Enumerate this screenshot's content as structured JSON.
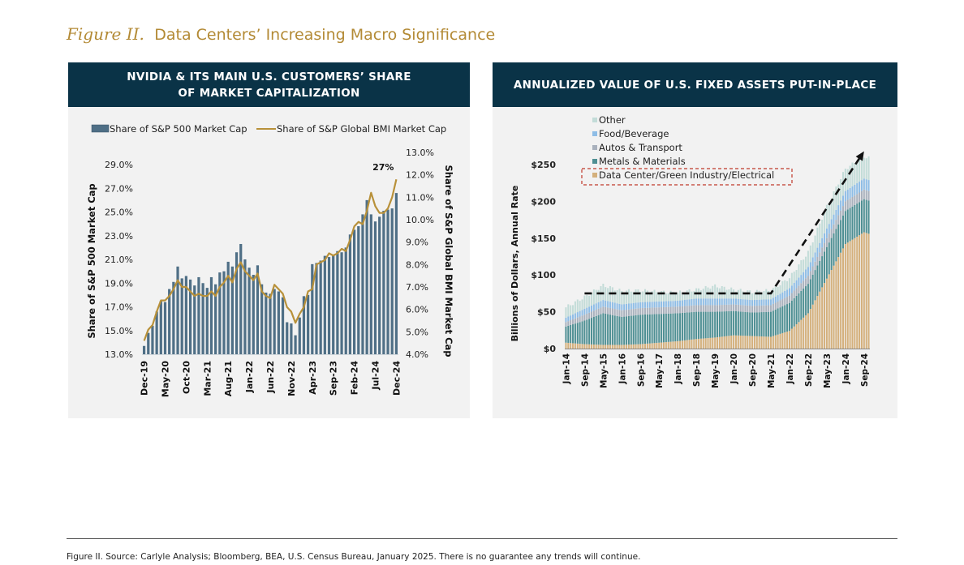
{
  "figure": {
    "number": "Figure II.",
    "title": "Data Centers’ Increasing Macro Significance"
  },
  "footer": {
    "source": "Figure II. Source: Carlyle Analysis; Bloomberg, BEA, U.S. Census Bureau, January 2025. There is no guarantee any trends will continue."
  },
  "colors": {
    "header_bg": "#0a3347",
    "title_gold": "#b38a35",
    "bar_blue": "#4f6f86",
    "line_gold": "#b8913a",
    "data_center": "#d4b07c",
    "metals": "#4e8f93",
    "autos": "#a9b1bd",
    "food": "#8ebde6",
    "other": "#c3dcd8",
    "highlight_box": "#c0392b"
  },
  "chart_data": [
    {
      "type": "bar",
      "title": "NVIDIA & ITS MAIN U.S. CUSTOMERS’ SHARE OF MARKET CAPITALIZATION",
      "ylabel": "Share of S&P 500 Market Cap",
      "y2label": "Share of S&P Global BMI Market Cap",
      "ylim": [
        13.0,
        29.0
      ],
      "y2lim": [
        4.0,
        13.0
      ],
      "yticks": [
        "13.0%",
        "15.0%",
        "17.0%",
        "19.0%",
        "21.0%",
        "23.0%",
        "25.0%",
        "27.0%",
        "29.0%"
      ],
      "y2ticks": [
        "4.0%",
        "5.0%",
        "6.0%",
        "7.0%",
        "8.0%",
        "9.0%",
        "10.0%",
        "11.0%",
        "12.0%",
        "13.0%"
      ],
      "xtick_labels": [
        "Dec-19",
        "May-20",
        "Oct-20",
        "Mar-21",
        "Aug-21",
        "Jan-22",
        "Jun-22",
        "Nov-22",
        "Apr-23",
        "Sep-23",
        "Feb-24",
        "Jul-24",
        "Dec-24"
      ],
      "annotation": "27%",
      "legend": [
        "Share of S&P 500 Market Cap",
        "Share of S&P Global BMI Market Cap"
      ],
      "legend_position": "top",
      "grid": false,
      "x_start": "Dec-19",
      "x_end": "Dec-24",
      "frequency": "monthly",
      "series": [
        {
          "name": "Share of S&P 500 Market Cap",
          "kind": "bar",
          "axis": "left",
          "values": [
            13.7,
            14.8,
            15.4,
            16.6,
            17.5,
            17.4,
            18.5,
            19.1,
            20.4,
            19.4,
            19.6,
            19.3,
            18.8,
            19.5,
            19.0,
            18.6,
            19.5,
            18.9,
            19.9,
            20.0,
            20.8,
            20.4,
            21.6,
            22.3,
            21.0,
            20.3,
            19.7,
            20.5,
            18.9,
            18.2,
            18.1,
            18.5,
            18.3,
            17.8,
            15.7,
            15.6,
            14.6,
            16.1,
            17.9,
            18.0,
            20.6,
            20.7,
            20.9,
            21.3,
            21.2,
            21.4,
            21.7,
            21.6,
            22.0,
            23.1,
            23.5,
            23.8,
            24.8,
            26.0,
            24.8,
            24.2,
            24.6,
            25.1,
            25.2,
            25.3,
            26.6
          ]
        },
        {
          "name": "Share of S&P Global BMI Market Cap",
          "kind": "line",
          "axis": "right",
          "values": [
            4.6,
            5.1,
            5.3,
            5.9,
            6.4,
            6.4,
            6.6,
            6.9,
            7.3,
            7.0,
            7.0,
            6.8,
            6.6,
            6.7,
            6.6,
            6.6,
            6.8,
            6.6,
            7.0,
            7.2,
            7.5,
            7.2,
            7.8,
            8.1,
            7.7,
            7.5,
            7.3,
            7.6,
            6.8,
            6.6,
            6.5,
            7.1,
            6.9,
            6.7,
            6.1,
            5.9,
            5.4,
            5.8,
            6.1,
            6.8,
            6.9,
            8.0,
            8.1,
            8.2,
            8.5,
            8.4,
            8.5,
            8.7,
            8.6,
            9.1,
            9.7,
            9.9,
            9.8,
            10.4,
            11.2,
            10.6,
            10.3,
            10.3,
            10.5,
            11.0,
            11.8
          ]
        }
      ]
    },
    {
      "type": "bar",
      "stacked": true,
      "title": "ANNUALIZED VALUE OF U.S. FIXED ASSETS PUT-IN-PLACE",
      "ylabel": "Billions of Dollars, Annual Rate",
      "ylim": [
        0,
        250
      ],
      "yticks": [
        "$0",
        "$50",
        "$100",
        "$150",
        "$200",
        "$250"
      ],
      "xtick_labels": [
        "Jan-14",
        "Sep-14",
        "May-15",
        "Jan-16",
        "Sep-16",
        "May-17",
        "Jan-18",
        "Sep-18",
        "May-19",
        "Jan-20",
        "Sep-20",
        "May-21",
        "Jan-22",
        "Sep-22",
        "May-23",
        "Jan-24",
        "Sep-24"
      ],
      "legend": [
        "Other",
        "Food/Beverage",
        "Autos & Transport",
        "Metals & Materials",
        "Data Center/Green Industry/Electrical"
      ],
      "legend_highlight": "Data Center/Green Industry/Electrical",
      "legend_position": "top-left",
      "grid": false,
      "trend_annotation": {
        "style": "dashed-arrow",
        "flat_level": 75,
        "flat_from": "Sep-14",
        "flat_to": "May-21",
        "end_value": 268,
        "end": "Sep-24"
      },
      "frequency": "monthly",
      "x_start": "Jan-14",
      "anchors": {
        "months_index": [
          0,
          8,
          16,
          24,
          32,
          40,
          48,
          56,
          64,
          72,
          80,
          88,
          96,
          104,
          112,
          120,
          128,
          130
        ],
        "data_center": [
          8,
          6,
          5,
          5,
          6,
          8,
          10,
          13,
          15,
          18,
          17,
          16,
          24,
          48,
          95,
          142,
          158,
          156
        ],
        "metals": [
          22,
          32,
          43,
          38,
          40,
          39,
          38,
          37,
          35,
          33,
          32,
          34,
          38,
          40,
          43,
          45,
          45,
          45
        ],
        "autos": [
          6,
          8,
          9,
          9,
          9,
          9,
          9,
          9,
          9,
          9,
          9,
          9,
          10,
          11,
          12,
          13,
          13,
          13
        ],
        "food": [
          6,
          8,
          9,
          8,
          8,
          8,
          8,
          9,
          9,
          8,
          8,
          8,
          10,
          12,
          13,
          14,
          15,
          15
        ],
        "other": [
          14,
          16,
          20,
          18,
          16,
          13,
          11,
          12,
          17,
          12,
          11,
          12,
          14,
          20,
          30,
          30,
          30,
          30
        ]
      }
    }
  ],
  "left_panel": {
    "title_line1": "NVIDIA & ITS MAIN U.S. CUSTOMERS’ SHARE",
    "title_line2": "OF MARKET CAPITALIZATION"
  },
  "right_panel": {
    "title": "ANNUALIZED VALUE OF U.S. FIXED ASSETS PUT-IN-PLACE"
  }
}
